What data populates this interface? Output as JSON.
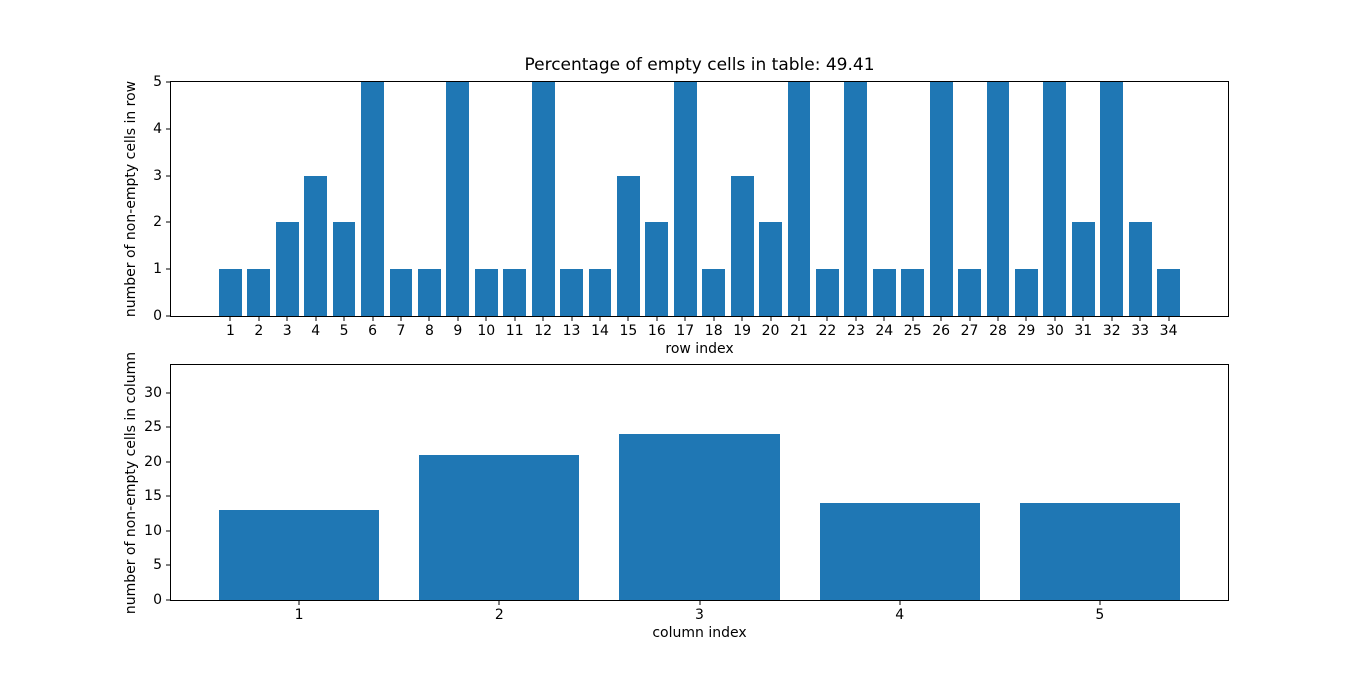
{
  "figure": {
    "background_color": "#ffffff",
    "text_color": "#000000",
    "bar_color": "#1f77b4",
    "percent_empty_cells": 49.41
  },
  "chart_data": [
    {
      "type": "bar",
      "title": "Percentage of empty cells in table: 49.41",
      "xlabel": "row index",
      "ylabel": "number of non-empty cells in row",
      "categories": [
        1,
        2,
        3,
        4,
        5,
        6,
        7,
        8,
        9,
        10,
        11,
        12,
        13,
        14,
        15,
        16,
        17,
        18,
        19,
        20,
        21,
        22,
        23,
        24,
        25,
        26,
        27,
        28,
        29,
        30,
        31,
        32,
        33,
        34
      ],
      "values": [
        1,
        1,
        2,
        3,
        2,
        5,
        1,
        1,
        5,
        1,
        1,
        5,
        1,
        1,
        3,
        2,
        5,
        1,
        3,
        2,
        5,
        1,
        5,
        1,
        1,
        5,
        1,
        5,
        1,
        5,
        2,
        5,
        2,
        1
      ],
      "bar_color": "#1f77b4",
      "bar_width": 0.8,
      "xlim": [
        -1.09,
        36.09
      ],
      "ylim": [
        0,
        5
      ],
      "yticks": [
        0,
        1,
        2,
        3,
        4,
        5
      ],
      "grid": false,
      "legend": null
    },
    {
      "type": "bar",
      "title": "",
      "xlabel": "column index",
      "ylabel": "number of non-empty cells in column",
      "categories": [
        1,
        2,
        3,
        4,
        5
      ],
      "values": [
        13,
        21,
        24,
        14,
        14
      ],
      "bar_color": "#1f77b4",
      "bar_width": 0.8,
      "xlim": [
        0.36,
        5.64
      ],
      "ylim": [
        0,
        34
      ],
      "yticks": [
        0,
        5,
        10,
        15,
        20,
        25,
        30
      ],
      "grid": false,
      "legend": null
    }
  ]
}
